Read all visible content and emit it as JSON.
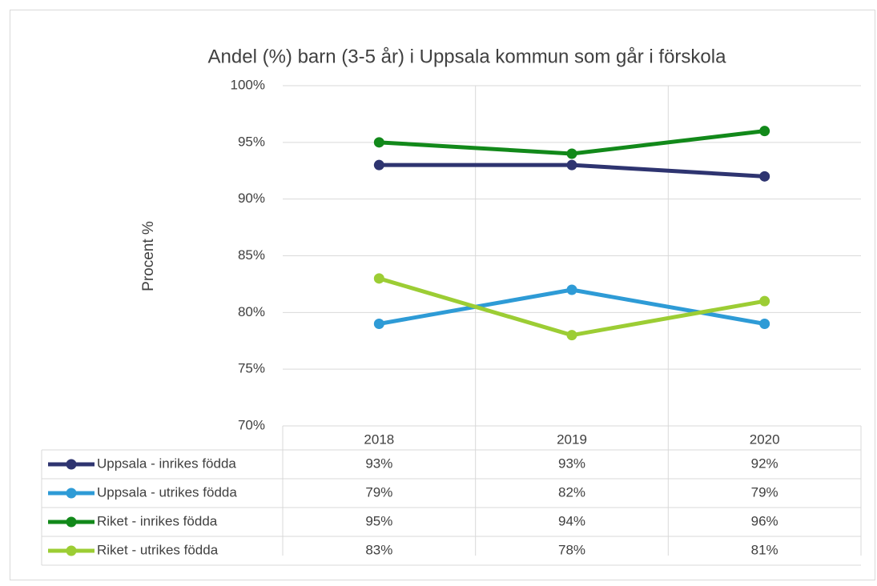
{
  "chart_data": {
    "type": "line",
    "title": "Andel (%) barn (3-5 år) i Uppsala kommun som går i förskola",
    "y_label": "Procent %",
    "categories": [
      "2018",
      "2019",
      "2020"
    ],
    "series": [
      {
        "name": "Uppsala - inrikes födda",
        "color": "#2e3470",
        "values": [
          93,
          93,
          92
        ],
        "value_labels": [
          "93%",
          "93%",
          "92%"
        ]
      },
      {
        "name": "Uppsala - utrikes födda",
        "color": "#2e9bd6",
        "values": [
          79,
          82,
          79
        ],
        "value_labels": [
          "79%",
          "82%",
          "79%"
        ]
      },
      {
        "name": "Riket - inrikes födda",
        "color": "#12891a",
        "values": [
          95,
          94,
          96
        ],
        "value_labels": [
          "95%",
          "94%",
          "96%"
        ]
      },
      {
        "name": "Riket - utrikes födda",
        "color": "#9ccd34",
        "values": [
          83,
          78,
          81
        ],
        "value_labels": [
          "83%",
          "78%",
          "81%"
        ]
      }
    ],
    "ylim": [
      70,
      100
    ],
    "yticks": [
      {
        "value": 70,
        "label": "70%"
      },
      {
        "value": 75,
        "label": "75%"
      },
      {
        "value": 80,
        "label": "80%"
      },
      {
        "value": 85,
        "label": "85%"
      },
      {
        "value": 90,
        "label": "90%"
      },
      {
        "value": 95,
        "label": "95%"
      },
      {
        "value": 100,
        "label": "100%"
      }
    ],
    "grid": true
  }
}
